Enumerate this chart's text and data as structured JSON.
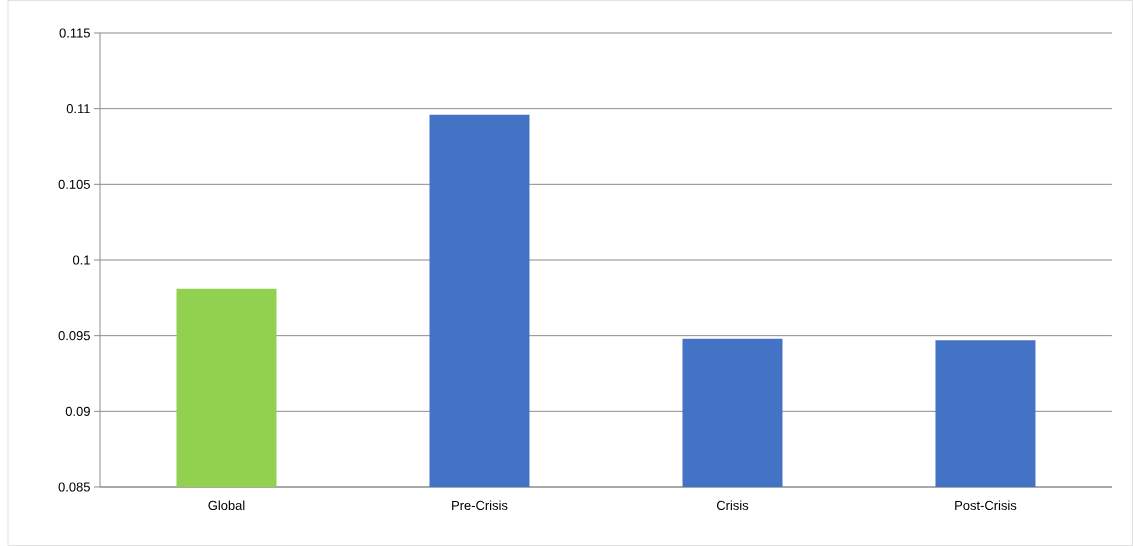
{
  "chart_data": {
    "type": "bar",
    "categories": [
      "Global",
      "Pre-Crisis",
      "Crisis",
      "Post-Crisis"
    ],
    "values": [
      0.0981,
      0.1096,
      0.0948,
      0.0947
    ],
    "colors": [
      "#92d050",
      "#4472c4",
      "#4472c4",
      "#4472c4"
    ],
    "ylim": [
      0.085,
      0.115
    ],
    "yticks": [
      0.085,
      0.09,
      0.095,
      0.1,
      0.105,
      0.11,
      0.115
    ],
    "grid": "y"
  }
}
